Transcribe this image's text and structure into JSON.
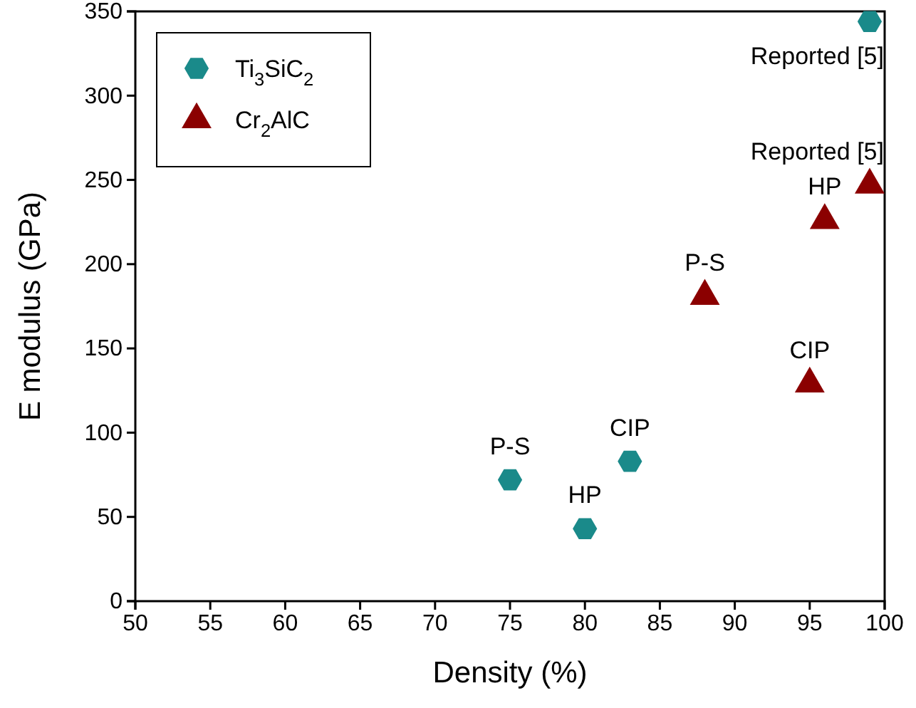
{
  "chart_data": {
    "type": "scatter",
    "xlabel": "Density (%)",
    "ylabel": "E modulus (GPa)",
    "xlim": [
      50,
      100
    ],
    "xticks": [
      50,
      55,
      60,
      65,
      70,
      75,
      80,
      85,
      90,
      95,
      100
    ],
    "ylim": [
      0,
      350
    ],
    "yticks": [
      0,
      50,
      100,
      150,
      200,
      250,
      300,
      350
    ],
    "grid": false,
    "legend": "top left",
    "series": [
      {
        "name": "Ti$_{3}$SiC$_{2}$",
        "color": "#1a8a8a",
        "x": [
          75,
          80,
          83,
          99
        ],
        "values": [
          72,
          43,
          83,
          344
        ]
      },
      {
        "name": "Cr$_{2}$AlC",
        "color": "#8b0000",
        "marker": "triangle",
        "x": [
          88,
          95,
          96,
          99
        ],
        "values": [
          181,
          129,
          226,
          247
        ]
      }
    ],
    "annotations": [
      {
        "text": "P-S",
        "x": 75,
        "y": 72
      },
      {
        "text": "HP",
        "x": 80,
        "y": 43
      },
      {
        "text": "CIP",
        "x": 83,
        "y": 83
      },
      {
        "text": "Reported [5]",
        "x": 99,
        "y": 344
      },
      {
        "text": "P-S",
        "x": 88,
        "y": 181
      },
      {
        "text": "HP",
        "x": 96,
        "y": 226
      },
      {
        "text": "CIP",
        "x": 95,
        "y": 129
      },
      {
        "text": "Reported [5]",
        "x": 99,
        "y": 247
      }
    ]
  }
}
